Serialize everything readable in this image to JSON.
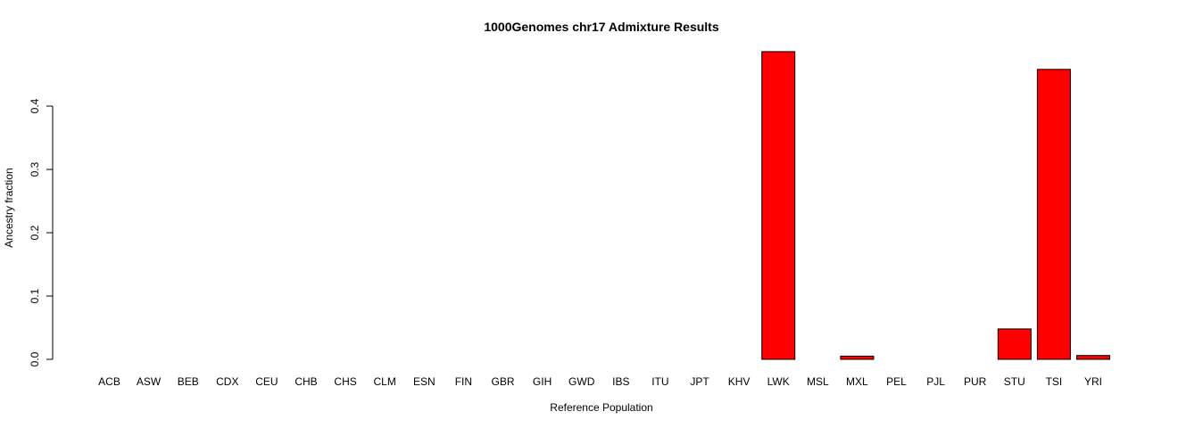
{
  "chart_data": {
    "type": "bar",
    "title": "1000Genomes chr17 Admixture Results",
    "xlabel": "Reference Population",
    "ylabel": "Ancestry fraction",
    "ylim": [
      0,
      0.48
    ],
    "yticks": [
      0.0,
      0.1,
      0.2,
      0.3,
      0.4
    ],
    "ytick_labels": [
      "0.0",
      "0.1",
      "0.2",
      "0.3",
      "0.4"
    ],
    "grid": false,
    "bar_color": "#ff0000",
    "bar_edge_color": "#000000",
    "categories": [
      "ACB",
      "ASW",
      "BEB",
      "CDX",
      "CEU",
      "CHB",
      "CHS",
      "CLM",
      "ESN",
      "FIN",
      "GBR",
      "GIH",
      "GWD",
      "IBS",
      "ITU",
      "JPT",
      "KHV",
      "LWK",
      "MSL",
      "MXL",
      "PEL",
      "PJL",
      "PUR",
      "STU",
      "TSI",
      "YRI"
    ],
    "values": [
      0,
      0,
      0,
      0,
      0,
      0,
      0,
      0,
      0,
      0,
      0,
      0,
      0,
      0,
      0,
      0,
      0,
      0.486,
      0,
      0.005,
      0,
      0,
      0,
      0.048,
      0.458,
      0.006
    ]
  }
}
